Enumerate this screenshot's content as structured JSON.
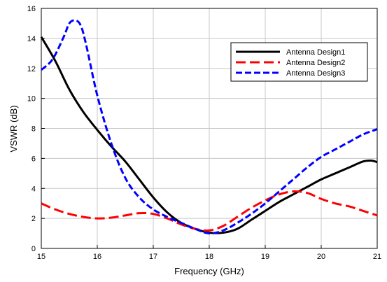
{
  "chart_data": {
    "type": "line",
    "xlabel": "Frequency (GHz)",
    "ylabel": "VSWR (dB)",
    "xlim": [
      15,
      21
    ],
    "ylim": [
      0,
      16
    ],
    "xticks": [
      15,
      16,
      17,
      18,
      19,
      20,
      21
    ],
    "yticks": [
      0,
      2,
      4,
      6,
      8,
      10,
      12,
      14,
      16
    ],
    "grid": true,
    "legend_position": "top-right",
    "series": [
      {
        "name": "Antenna Design1",
        "color": "#000000",
        "dash": "solid",
        "x": [
          15.0,
          15.25,
          15.5,
          15.75,
          16.0,
          16.25,
          16.5,
          16.75,
          17.0,
          17.25,
          17.5,
          17.75,
          18.0,
          18.25,
          18.5,
          18.75,
          19.0,
          19.25,
          19.5,
          19.75,
          20.0,
          20.25,
          20.5,
          20.75,
          20.9,
          21.0
        ],
        "y": [
          14.1,
          12.5,
          10.6,
          9.1,
          7.9,
          6.8,
          5.8,
          4.6,
          3.4,
          2.4,
          1.7,
          1.3,
          1.05,
          1.05,
          1.3,
          1.9,
          2.5,
          3.1,
          3.6,
          4.1,
          4.6,
          5.0,
          5.4,
          5.8,
          5.85,
          5.75
        ]
      },
      {
        "name": "Antenna Design2",
        "color": "#ff0000",
        "dash": "dashed",
        "x": [
          15.0,
          15.25,
          15.5,
          15.75,
          16.0,
          16.25,
          16.5,
          16.75,
          17.0,
          17.25,
          17.5,
          17.75,
          18.0,
          18.25,
          18.5,
          18.75,
          19.0,
          19.25,
          19.5,
          19.75,
          20.0,
          20.25,
          20.5,
          20.75,
          21.0
        ],
        "y": [
          3.0,
          2.6,
          2.3,
          2.1,
          2.0,
          2.05,
          2.2,
          2.35,
          2.3,
          2.0,
          1.6,
          1.3,
          1.2,
          1.5,
          2.1,
          2.7,
          3.2,
          3.6,
          3.8,
          3.7,
          3.3,
          3.0,
          2.8,
          2.5,
          2.2
        ]
      },
      {
        "name": "Antenna Design3",
        "color": "#0000ff",
        "dash": "dashed",
        "x": [
          15.0,
          15.2,
          15.4,
          15.5,
          15.6,
          15.7,
          15.8,
          16.0,
          16.25,
          16.5,
          16.75,
          17.0,
          17.25,
          17.5,
          17.75,
          18.0,
          18.25,
          18.5,
          18.75,
          19.0,
          19.25,
          19.5,
          19.75,
          20.0,
          20.25,
          20.5,
          20.75,
          21.0
        ],
        "y": [
          11.9,
          12.6,
          14.1,
          15.0,
          15.2,
          14.9,
          13.6,
          10.2,
          7.0,
          4.7,
          3.4,
          2.6,
          2.1,
          1.7,
          1.3,
          1.0,
          1.2,
          1.7,
          2.3,
          3.0,
          3.8,
          4.6,
          5.4,
          6.1,
          6.6,
          7.1,
          7.6,
          7.95
        ]
      }
    ]
  }
}
